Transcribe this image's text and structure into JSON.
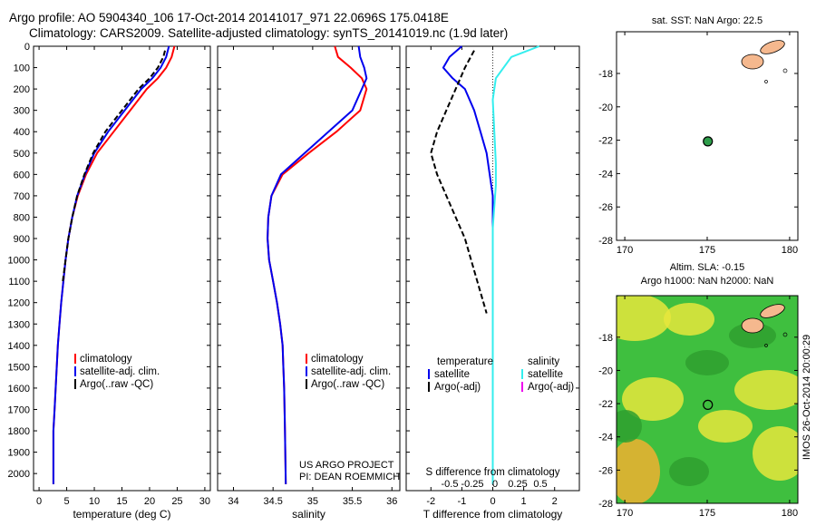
{
  "title_line1": "Argo profile: AO 5904340_106 17-Oct-2014 20141017_971 22.0696S 175.0418E",
  "title_line2": "Climatology: CARS2009. Satellite-adjusted climatology: synTS_20141019.nc (1.9d later)",
  "timestamp": "IMOS 26-Oct-2014 20:00:29",
  "project": {
    "line1": "US ARGO PROJECT",
    "line2": "PI: DEAN ROEMMICH"
  },
  "colors": {
    "climatology": "#ff0000",
    "satellite": "#0000ee",
    "argo": "#000000",
    "sal_satellite": "#33eeee",
    "sal_argo": "#ee00ee",
    "land": "#f5b88e",
    "marker": "#2e9d4a",
    "sla_green": "#3fbf3f",
    "sla_yellow": "#e6e63c"
  },
  "chart_data": [
    {
      "type": "line",
      "panel": "temperature",
      "xlabel": "temperature (deg C)",
      "ylabel": "",
      "xlim": [
        -1,
        31
      ],
      "ylim": [
        2080,
        0
      ],
      "xticks": [
        0,
        5,
        10,
        15,
        20,
        25,
        30
      ],
      "yticks": [
        0,
        100,
        200,
        300,
        400,
        500,
        600,
        700,
        800,
        900,
        1000,
        1100,
        1200,
        1300,
        1400,
        1500,
        1600,
        1700,
        1800,
        1900,
        2000
      ],
      "legend": [
        "climatology",
        "satellite-adj. clim.",
        "Argo(..raw -QC)"
      ],
      "series": [
        {
          "key": "climatology",
          "style": "solid",
          "x": [
            24.5,
            24.0,
            23.0,
            21.5,
            19.5,
            16.5,
            13.5,
            10.5,
            8.5,
            7.0,
            6.0,
            5.3,
            4.8,
            4.4,
            4.0,
            3.7,
            3.4,
            3.2,
            3.0,
            2.8,
            2.6,
            2.6
          ],
          "y": [
            0,
            50,
            100,
            150,
            200,
            300,
            400,
            500,
            600,
            700,
            800,
            900,
            1000,
            1100,
            1200,
            1300,
            1400,
            1500,
            1600,
            1700,
            1800,
            2050
          ]
        },
        {
          "key": "satellite",
          "style": "solid",
          "x": [
            23.5,
            23.0,
            22.0,
            20.5,
            18.5,
            15.5,
            12.5,
            10.0,
            8.3,
            6.9,
            6.0,
            5.3,
            4.8,
            4.4,
            4.0,
            3.7,
            3.4,
            3.2,
            3.0,
            2.8,
            2.6,
            2.6
          ],
          "y": [
            0,
            50,
            100,
            150,
            200,
            300,
            400,
            500,
            600,
            700,
            800,
            900,
            1000,
            1100,
            1200,
            1300,
            1400,
            1500,
            1600,
            1700,
            1800,
            2050
          ]
        },
        {
          "key": "argo",
          "style": "dashed",
          "x": [
            22.8,
            22.5,
            21.5,
            20.0,
            18.0,
            15.0,
            12.0,
            9.8,
            8.2,
            6.9,
            6.0,
            5.3,
            4.8,
            4.3
          ],
          "y": [
            20,
            50,
            100,
            150,
            200,
            300,
            400,
            500,
            600,
            700,
            800,
            900,
            1000,
            1100
          ]
        }
      ]
    },
    {
      "type": "line",
      "panel": "salinity",
      "xlabel": "salinity",
      "ylabel": "",
      "xlim": [
        33.8,
        36.1
      ],
      "ylim": [
        2080,
        0
      ],
      "xticks": [
        34,
        34.5,
        35,
        35.5,
        36
      ],
      "xticklabels": [
        "34",
        "34.5",
        "35",
        "35.5",
        "36"
      ],
      "legend": [
        "climatology",
        "satellite-adj. clim.",
        "Argo(..raw -QC)"
      ],
      "series": [
        {
          "key": "climatology",
          "style": "solid",
          "x": [
            35.28,
            35.32,
            35.48,
            35.62,
            35.68,
            35.6,
            35.3,
            34.95,
            34.62,
            34.48,
            34.44,
            34.43,
            34.45,
            34.5,
            34.55,
            34.59,
            34.62,
            34.63,
            34.64,
            34.65,
            34.66
          ],
          "y": [
            0,
            50,
            100,
            150,
            200,
            300,
            400,
            500,
            600,
            700,
            800,
            900,
            1000,
            1100,
            1200,
            1300,
            1400,
            1500,
            1600,
            1800,
            2050
          ]
        },
        {
          "key": "satellite",
          "style": "solid",
          "x": [
            35.58,
            35.6,
            35.65,
            35.68,
            35.62,
            35.5,
            35.2,
            34.9,
            34.6,
            34.48,
            34.44,
            34.43,
            34.45,
            34.5,
            34.55,
            34.59,
            34.62,
            34.63,
            34.64,
            34.65,
            34.66
          ],
          "y": [
            0,
            50,
            100,
            150,
            200,
            300,
            400,
            500,
            600,
            700,
            800,
            900,
            1000,
            1100,
            1200,
            1300,
            1400,
            1500,
            1600,
            1800,
            2050
          ]
        }
      ]
    },
    {
      "type": "line",
      "panel": "difference",
      "xlabel": "T difference from climatology",
      "xlabel_top": "S difference from climatology",
      "ylabel": "",
      "xlim": [
        -2.8,
        2.8
      ],
      "ylim": [
        2080,
        0
      ],
      "xticks": [
        -2,
        -1,
        0,
        1,
        2
      ],
      "sticks": [
        -0.5,
        -0.25,
        0,
        0.25,
        0.5
      ],
      "sticklabels": [
        "-0.5",
        "-0.25",
        "0",
        "0.25",
        "0.5"
      ],
      "legend_temperature": {
        "title": "temperature",
        "items": [
          "satellite",
          "Argo(-adj)"
        ]
      },
      "legend_salinity": {
        "title": "salinity",
        "items": [
          "satellite",
          "Argo(-adj)"
        ]
      },
      "series": [
        {
          "key": "satellite",
          "style": "solid",
          "x": [
            -1.0,
            -1.4,
            -1.6,
            -1.3,
            -0.9,
            -0.6,
            -0.4,
            -0.2,
            -0.1,
            0.0,
            0.0,
            0.0,
            0.0,
            0.0
          ],
          "y": [
            0,
            50,
            100,
            150,
            200,
            300,
            400,
            500,
            600,
            700,
            800,
            1200,
            1600,
            2050
          ]
        },
        {
          "key": "argo",
          "style": "dashed",
          "x": [
            -0.6,
            -0.9,
            -1.2,
            -1.5,
            -1.8,
            -2.0,
            -1.8,
            -1.5,
            -1.2,
            -0.9,
            -0.7,
            -0.5,
            -0.2
          ],
          "y": [
            20,
            100,
            200,
            300,
            400,
            500,
            600,
            700,
            800,
            900,
            1000,
            1100,
            1250
          ]
        },
        {
          "key": "sal_satellite",
          "style": "solid",
          "x": [
            1.5,
            0.6,
            0.1,
            0.0,
            0.05,
            0.1,
            0.1,
            0.05,
            0.0,
            0.0,
            0.0,
            0.0
          ],
          "y": [
            0,
            50,
            150,
            250,
            400,
            550,
            650,
            750,
            850,
            1200,
            1600,
            2050
          ]
        }
      ]
    },
    {
      "type": "map",
      "panel": "sst",
      "title": "sat. SST: NaN Argo: 22.5",
      "xlim": [
        169.5,
        180.5
      ],
      "ylim": [
        -28,
        -15.5
      ],
      "xticks": [
        170,
        175,
        180
      ],
      "yticks": [
        -28,
        -26,
        -24,
        -22,
        -20,
        -18
      ],
      "marker": {
        "lon": 175.04,
        "lat": -22.07
      }
    },
    {
      "type": "map",
      "panel": "sla",
      "title_line1": "Altim. SLA: -0.15",
      "title_line2": "Argo h1000: NaN h2000: NaN",
      "xlim": [
        169.5,
        180.5
      ],
      "ylim": [
        -28,
        -15.5
      ],
      "xticks": [
        170,
        175,
        180
      ],
      "yticks": [
        -28,
        -26,
        -24,
        -22,
        -20,
        -18
      ],
      "marker": {
        "lon": 175.04,
        "lat": -22.07
      }
    }
  ]
}
